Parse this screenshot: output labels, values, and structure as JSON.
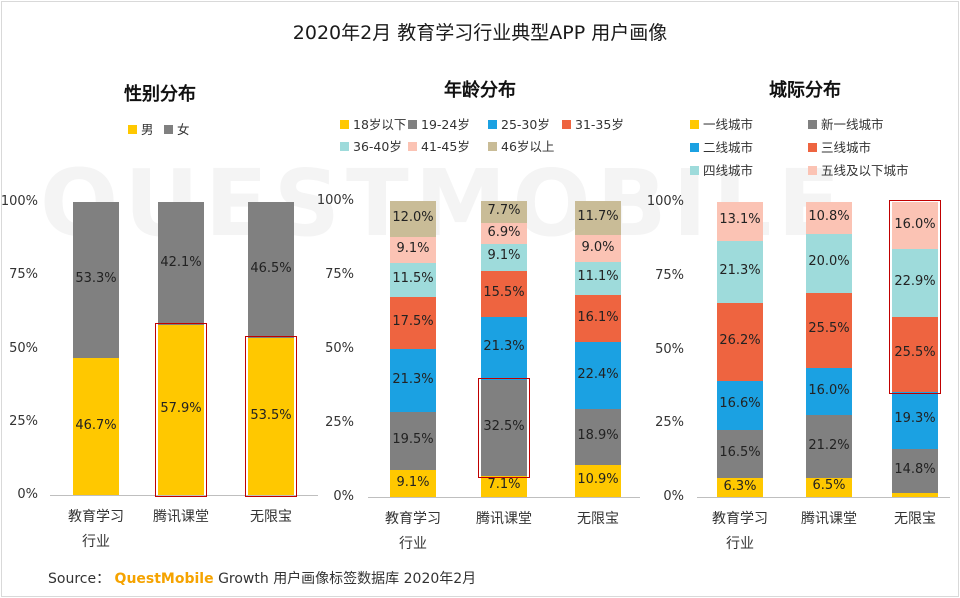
{
  "title": "2020年2月 教育学习行业典型APP 用户画像",
  "watermark": "QUESTMOBILE",
  "source": {
    "prefix": "Source：",
    "brand": "QuestMobile",
    "rest": "Growth 用户画像标签数据库 2020年2月"
  },
  "y_ticks": [
    "0%",
    "25%",
    "50%",
    "75%",
    "100%"
  ],
  "chart_data": [
    {
      "type": "bar",
      "stacked": true,
      "title": "性别分布",
      "categories": [
        "教育学习\n行业",
        "腾讯课堂",
        "无限宝"
      ],
      "series": [
        {
          "name": "男",
          "color": "#FFC800",
          "values": [
            46.7,
            57.9,
            53.5
          ]
        },
        {
          "name": "女",
          "color": "#808080",
          "values": [
            53.3,
            42.1,
            46.5
          ]
        }
      ],
      "ylim": [
        0,
        100
      ],
      "highlight": [
        {
          "category": 1,
          "series": [
            0
          ]
        },
        {
          "category": 2,
          "series": [
            0
          ]
        }
      ]
    },
    {
      "type": "bar",
      "stacked": true,
      "title": "年龄分布",
      "categories": [
        "教育学习\n行业",
        "腾讯课堂",
        "无限宝"
      ],
      "series": [
        {
          "name": "18岁以下",
          "color": "#FFC800",
          "values": [
            9.1,
            7.1,
            10.9
          ]
        },
        {
          "name": "19-24岁",
          "color": "#808080",
          "values": [
            19.5,
            32.5,
            18.9
          ]
        },
        {
          "name": "25-30岁",
          "color": "#1BA1E2",
          "values": [
            21.3,
            21.3,
            22.4
          ]
        },
        {
          "name": "31-35岁",
          "color": "#EE6440",
          "values": [
            17.5,
            15.5,
            16.1
          ]
        },
        {
          "name": "36-40岁",
          "color": "#9EDBDB",
          "values": [
            11.5,
            9.1,
            11.1
          ]
        },
        {
          "name": "41-45岁",
          "color": "#FBC3B4",
          "values": [
            9.1,
            6.9,
            9.0
          ]
        },
        {
          "name": "46岁以上",
          "color": "#C9BC97",
          "values": [
            12.0,
            7.7,
            11.7
          ]
        }
      ],
      "ylim": [
        0,
        100
      ],
      "highlight": [
        {
          "category": 1,
          "series": [
            1
          ]
        }
      ]
    },
    {
      "type": "bar",
      "stacked": true,
      "title": "城际分布",
      "categories": [
        "教育学习\n行业",
        "腾讯课堂",
        "无限宝"
      ],
      "series": [
        {
          "name": "一线城市",
          "color": "#FFC800",
          "values": [
            6.3,
            6.5,
            1.5
          ]
        },
        {
          "name": "新一线城市",
          "color": "#808080",
          "values": [
            16.5,
            21.2,
            14.8
          ]
        },
        {
          "name": "二线城市",
          "color": "#1BA1E2",
          "values": [
            16.6,
            16.0,
            19.3
          ]
        },
        {
          "name": "三线城市",
          "color": "#EE6440",
          "values": [
            26.2,
            25.5,
            25.5
          ]
        },
        {
          "name": "四线城市",
          "color": "#9EDBDB",
          "values": [
            21.3,
            20.0,
            22.9
          ]
        },
        {
          "name": "五线及以下城市",
          "color": "#FBC3B4",
          "values": [
            13.1,
            10.8,
            16.0
          ]
        }
      ],
      "ylim": [
        0,
        100
      ],
      "highlight": [
        {
          "category": 2,
          "series": [
            3,
            4,
            5
          ]
        }
      ]
    }
  ]
}
